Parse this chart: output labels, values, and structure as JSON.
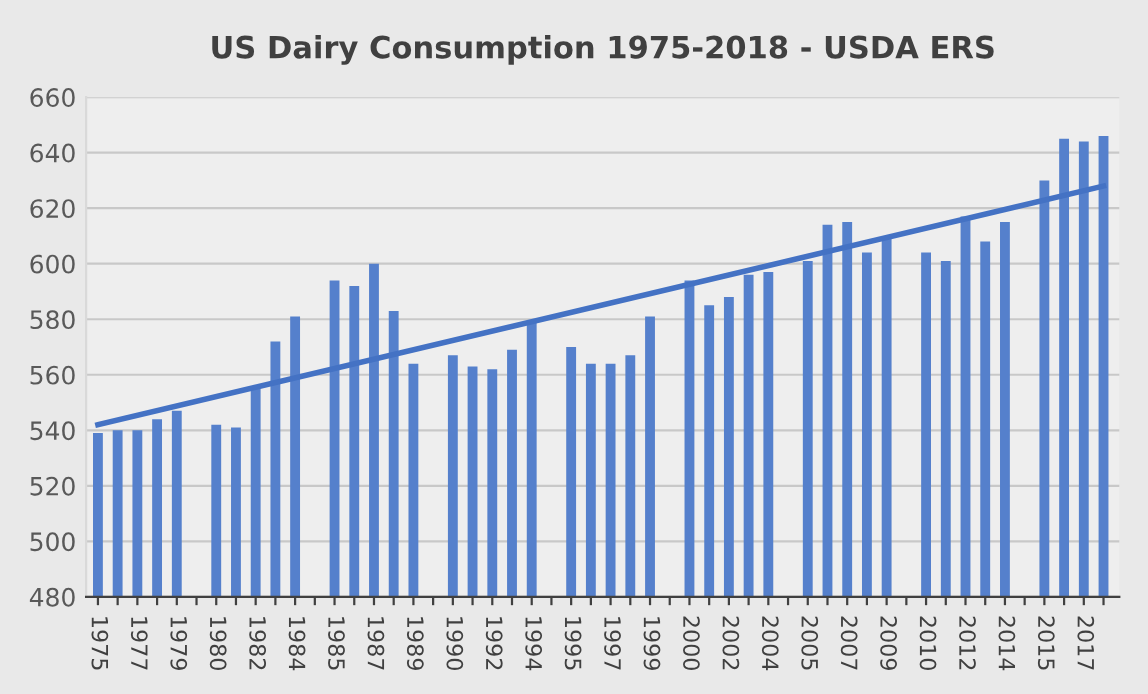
{
  "chart_data": {
    "type": "bar",
    "title": "US Dairy Consumption 1975-2018 - USDA ERS",
    "categories": [
      "1975",
      null,
      "1977",
      null,
      "1979",
      null,
      "1980",
      null,
      "1982",
      null,
      "1984",
      null,
      "1985",
      null,
      "1987",
      null,
      "1989",
      null,
      "1990",
      null,
      "1992",
      null,
      "1994",
      null,
      "1995",
      null,
      "1997",
      null,
      "1999",
      null,
      "2000",
      null,
      "2002",
      null,
      "2004",
      null,
      "2005",
      null,
      "2007",
      null,
      "2009",
      null,
      "2010",
      null,
      "2012",
      null,
      "2014",
      null,
      "2015",
      null,
      "2017",
      null
    ],
    "series": [
      {
        "color": "#5580cc",
        "values": [
          539,
          540,
          540,
          544,
          547,
          null,
          542,
          541,
          555,
          572,
          581,
          null,
          594,
          592,
          600,
          583,
          564,
          null,
          567,
          563,
          562,
          569,
          579,
          null,
          570,
          564,
          564,
          567,
          581,
          null,
          594,
          585,
          588,
          596,
          597,
          null,
          601,
          614,
          615,
          604,
          609,
          null,
          604,
          601,
          617,
          608,
          615,
          null,
          630,
          645,
          644,
          646
        ]
      },
      {
        "type": "line",
        "color": "#4472c4",
        "values": [
          542,
          null,
          null,
          null,
          null,
          null,
          null,
          null,
          null,
          null,
          null,
          null,
          null,
          null,
          null,
          null,
          null,
          null,
          null,
          null,
          null,
          null,
          null,
          null,
          null,
          null,
          null,
          null,
          null,
          null,
          null,
          null,
          null,
          null,
          null,
          null,
          null,
          null,
          null,
          null,
          null,
          null,
          null,
          null,
          null,
          null,
          null,
          null,
          null,
          null,
          null,
          628
        ]
      }
    ],
    "ylim": [
      480,
      660
    ],
    "yticks": [
      480,
      500,
      520,
      540,
      560,
      580,
      600,
      620,
      640,
      660
    ],
    "grid": "y"
  }
}
